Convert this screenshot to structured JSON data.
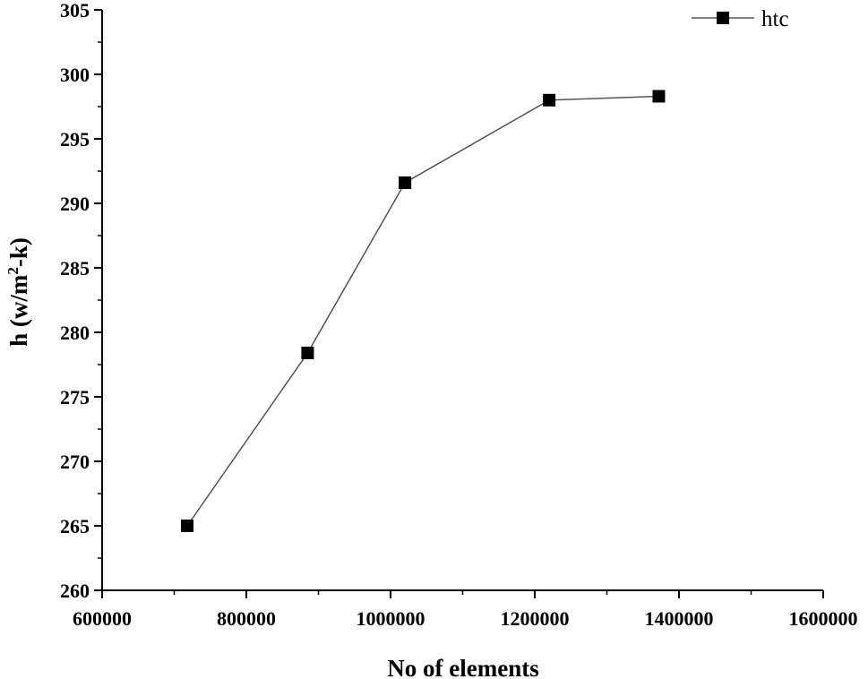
{
  "chart_data": {
    "type": "line",
    "title": "",
    "xlabel": "No of elements",
    "ylabel_main": "h (w/m",
    "ylabel_sup": "2",
    "ylabel_tail": "-k)",
    "xlim": [
      600000,
      1600000
    ],
    "ylim": [
      260,
      305
    ],
    "x_ticks": [
      600000,
      800000,
      1000000,
      1200000,
      1400000,
      1600000
    ],
    "x_tick_labels": [
      "600000",
      "800000",
      "1000000",
      "1200000",
      "1400000",
      "1600000"
    ],
    "y_ticks": [
      260,
      265,
      270,
      275,
      280,
      285,
      290,
      295,
      300,
      305
    ],
    "y_tick_labels": [
      "260",
      "265",
      "270",
      "275",
      "280",
      "285",
      "290",
      "295",
      "300",
      "305"
    ],
    "grid": false,
    "legend_position": "top-right",
    "series": [
      {
        "name": "htc",
        "marker": "square",
        "color": "#000000",
        "line_color": "#555555",
        "x": [
          718000,
          885000,
          1020000,
          1220000,
          1372000
        ],
        "y": [
          265.0,
          278.4,
          291.6,
          298.0,
          298.3
        ]
      }
    ]
  }
}
